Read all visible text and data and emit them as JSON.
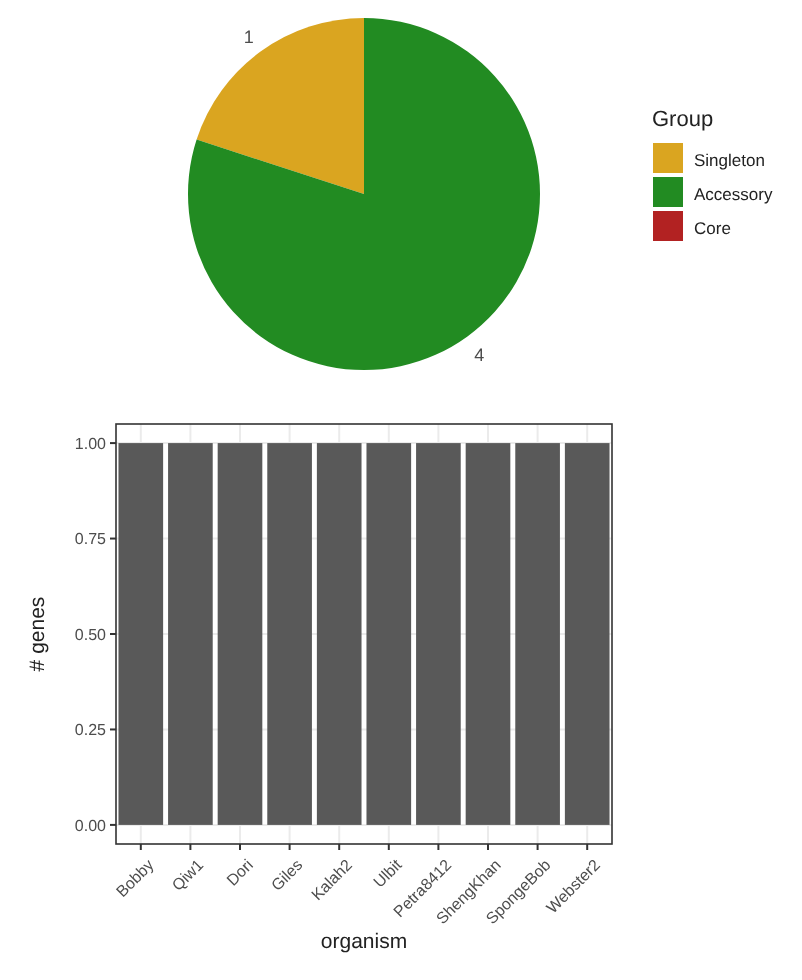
{
  "chart_data": [
    {
      "type": "pie",
      "categories": [
        "Singleton",
        "Accessory",
        "Core"
      ],
      "values": [
        1,
        4,
        0
      ],
      "colors": [
        "#daa520",
        "#228b22",
        "#b22222"
      ],
      "value_labels": [
        "1",
        "4",
        null
      ],
      "legend": "right",
      "legend_title": "Group"
    },
    {
      "type": "bar",
      "categories": [
        "Bobby",
        "Qiw1",
        "Dori",
        "Giles",
        "Kalah2",
        "Ulbit",
        "Petra8412",
        "ShengKhan",
        "SpongeBob",
        "Webster2"
      ],
      "values": [
        1,
        1,
        1,
        1,
        1,
        1,
        1,
        1,
        1,
        1
      ],
      "color": "#595959",
      "ylim": [
        -0.05,
        1.05
      ],
      "yticks": [
        {
          "value": 0,
          "label": "0.00"
        },
        {
          "value": 0.25,
          "label": "0.25"
        },
        {
          "value": 0.5,
          "label": "0.50"
        },
        {
          "value": 0.75,
          "label": "0.75"
        },
        {
          "value": 1,
          "label": "1.00"
        }
      ],
      "grid": true,
      "xlabel": "organism",
      "ylabel": "# genes"
    }
  ]
}
